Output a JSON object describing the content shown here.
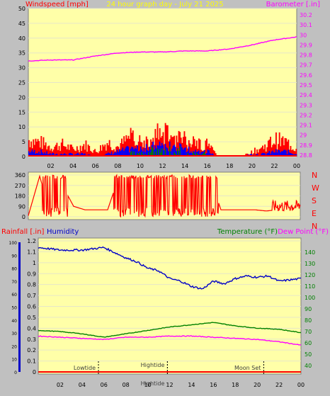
{
  "header": {
    "left": "Windspeed [mph]",
    "center": "24 hour graph day - July 21 2025",
    "right": "Barometer [.in]"
  },
  "colors": {
    "background": "#c0c0c0",
    "plot_bg": "#ffffa8",
    "grid": "#e6e6c8",
    "wind": "#ff0000",
    "wind_avg": "#0000ff",
    "wind_calm": "#008000",
    "barometer": "#ff00ff",
    "rain": "#ff0000",
    "humidity": "#0000c8",
    "temperature": "#008000",
    "dew_point": "#ff00ff",
    "header_text": "#ffff00"
  },
  "time_ticks": [
    "02",
    "04",
    "06",
    "08",
    "10",
    "12",
    "14",
    "16",
    "18",
    "20",
    "22",
    "00"
  ],
  "direction_labels": [
    "N",
    "W",
    "S",
    "E",
    "N"
  ],
  "bottom_header": {
    "rainfall": "Rainfall [.in]",
    "humidity": "Humidity",
    "temperature": "Temperature (°F)",
    "dew_point": "Dew Point (°F)"
  },
  "annotations": [
    {
      "label": "Lowtide",
      "hour": 5.5
    },
    {
      "label": "Hightide",
      "hour": 11.8
    },
    {
      "label": "Hightide",
      "hour": 11.8
    },
    {
      "label": "Moon Set",
      "hour": 20.6
    }
  ],
  "chart_data": [
    {
      "type": "area",
      "title": "24 hour graph day - July 21 2025",
      "ylabel": "Windspeed [mph]",
      "ylabel_right": "Barometer [.in]",
      "x_ticks": [
        "02",
        "04",
        "06",
        "08",
        "10",
        "12",
        "14",
        "16",
        "18",
        "20",
        "22",
        "00"
      ],
      "ylim": [
        0,
        50
      ],
      "yticks": [
        0,
        5,
        10,
        15,
        20,
        25,
        30,
        35,
        40,
        45,
        50
      ],
      "ylim_right": [
        28.8,
        30.2
      ],
      "yticks_right": [
        "28.8",
        "28.9",
        "29",
        "29.1",
        "29.2",
        "29.3",
        "29.4",
        "29.5",
        "29.6",
        "29.7",
        "29.8",
        "29.9",
        "30",
        "30.1",
        "30.2"
      ],
      "series": [
        {
          "name": "Windspeed [mph]",
          "kind": "wind_gust",
          "x": [
            0,
            1,
            2,
            3,
            4,
            5,
            6,
            7,
            8,
            9,
            10,
            11,
            12,
            13,
            14,
            15,
            16,
            17,
            18,
            19,
            20,
            21,
            22,
            23,
            24
          ],
          "y": [
            7,
            6,
            4,
            5,
            3,
            5,
            2,
            6,
            4,
            8,
            7,
            9,
            10,
            8,
            7,
            6,
            5,
            0,
            0,
            0,
            2,
            4,
            7,
            6,
            3
          ]
        },
        {
          "name": "Wind average",
          "kind": "wind_avg",
          "x": [
            0,
            1,
            2,
            3,
            4,
            5,
            6,
            7,
            8,
            9,
            10,
            11,
            12,
            13,
            14,
            15,
            16,
            17,
            18,
            19,
            20,
            21,
            22,
            23,
            24
          ],
          "y": [
            2,
            2,
            1,
            1,
            1,
            1,
            0,
            1,
            2,
            3,
            3,
            4,
            4,
            4,
            3,
            2,
            2,
            0,
            0,
            0,
            1,
            1,
            2,
            2,
            1
          ]
        },
        {
          "name": "Barometer [.in]",
          "kind": "barometer",
          "x": [
            0,
            2,
            4,
            6,
            8,
            10,
            12,
            14,
            16,
            18,
            20,
            22,
            24
          ],
          "y": [
            29.74,
            29.75,
            29.75,
            29.79,
            29.82,
            29.83,
            29.83,
            29.84,
            29.84,
            29.86,
            29.9,
            29.95,
            29.98
          ]
        }
      ]
    },
    {
      "type": "line",
      "ylabel": "Wind direction",
      "ylim": [
        0,
        360
      ],
      "yticks": [
        0,
        90,
        180,
        270,
        360
      ],
      "series": [
        {
          "name": "Wind direction",
          "x": [
            0,
            1,
            2,
            3,
            3.5,
            4,
            5,
            6,
            7,
            8,
            9,
            10,
            11,
            12,
            13,
            14,
            15,
            16,
            17,
            18,
            19,
            20,
            21,
            22,
            23,
            24
          ],
          "y": [
            10,
            350,
            10,
            340,
            180,
            90,
            60,
            60,
            60,
            350,
            10,
            340,
            20,
            350,
            30,
            340,
            10,
            350,
            60,
            60,
            60,
            60,
            50,
            60,
            90,
            80
          ]
        }
      ]
    },
    {
      "type": "line",
      "ylabel": "Rainfall [.in]",
      "ylim": [
        0,
        1.2
      ],
      "yticks": [
        "0",
        "0.1",
        "0.2",
        "0.3",
        "0.4",
        "0.5",
        "0.6",
        "0.7",
        "0.8",
        "0.9",
        "1",
        "1.1",
        "1.2"
      ],
      "ylim_right": [
        30,
        150
      ],
      "yticks_right": [
        "40",
        "50",
        "60",
        "70",
        "80",
        "90",
        "100",
        "110",
        "120",
        "130",
        "140"
      ],
      "series": [
        {
          "name": "Rainfall [.in]",
          "axis": "left",
          "x": [
            0,
            24
          ],
          "y": [
            0,
            0
          ]
        },
        {
          "name": "Humidity",
          "axis": "humidity",
          "ylim": [
            0,
            100
          ],
          "x": [
            0,
            2,
            4,
            6,
            7,
            8,
            9,
            10,
            11,
            12,
            13,
            14,
            15,
            16,
            17,
            18,
            19,
            20,
            21,
            22,
            23,
            24
          ],
          "y": [
            96,
            94,
            94,
            96,
            92,
            88,
            85,
            80,
            78,
            72,
            70,
            66,
            64,
            70,
            68,
            72,
            74,
            73,
            74,
            70,
            71,
            72
          ]
        },
        {
          "name": "Temperature (°F)",
          "axis": "right",
          "x": [
            0,
            2,
            4,
            6,
            8,
            10,
            12,
            14,
            16,
            18,
            20,
            22,
            24
          ],
          "y": [
            71,
            70,
            68,
            65,
            68,
            71,
            74,
            76,
            78,
            75,
            73,
            72,
            69
          ]
        },
        {
          "name": "Dew Point (°F)",
          "axis": "right",
          "x": [
            0,
            2,
            4,
            6,
            8,
            10,
            12,
            14,
            16,
            18,
            20,
            22,
            24
          ],
          "y": [
            66,
            65,
            64,
            63,
            65,
            65,
            66,
            66,
            65,
            64,
            63,
            61,
            58
          ]
        }
      ]
    }
  ]
}
